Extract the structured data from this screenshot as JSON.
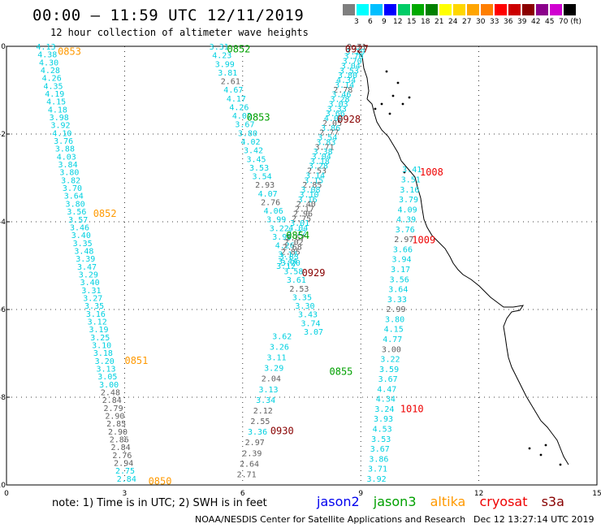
{
  "header": {
    "title": "00:00 – 11:59 UTC 12/11/2019",
    "subtitle": "12 hour collection of altimeter wave heights"
  },
  "colorbar": {
    "labels": [
      "3",
      "6",
      "9",
      "12",
      "15",
      "18",
      "21",
      "24",
      "27",
      "30",
      "33",
      "36",
      "39",
      "42",
      "45",
      "70 (ft)"
    ],
    "colors": [
      "#7f7f7f",
      "#00ffff",
      "#00bfff",
      "#0000ff",
      "#00cc66",
      "#00aa00",
      "#008000",
      "#ffff00",
      "#ffd700",
      "#ffa500",
      "#ff7f00",
      "#ff0000",
      "#cc0000",
      "#8b0000",
      "#8b008b",
      "#d000d0",
      "#000000"
    ]
  },
  "colors": {
    "jason2": "#00d0e0",
    "grey": "#606060",
    "jason3": "#00a000",
    "altika": "#ff9900",
    "cryosat": "#ee0000",
    "s3a": "#880000"
  },
  "chart_data": {
    "type": "scatter",
    "xlim": [
      0,
      15
    ],
    "ylim": [
      -10,
      0
    ],
    "x_ticks": [
      "0",
      "3",
      "6",
      "9",
      "12",
      "15"
    ],
    "y_ticks": [
      "0",
      "-2",
      "-4",
      "-6",
      "-8",
      "-10"
    ],
    "track_labels": [
      {
        "text": "0853",
        "x": 1.6,
        "y": -0.1,
        "color": "altika"
      },
      {
        "text": "0852",
        "x": 5.9,
        "y": -0.05,
        "color": "jason3"
      },
      {
        "text": "0927",
        "x": 8.9,
        "y": -0.05,
        "color": "s3a"
      },
      {
        "text": "0853",
        "x": 6.4,
        "y": -1.6,
        "color": "jason3"
      },
      {
        "text": "0928",
        "x": 8.7,
        "y": -1.65,
        "color": "s3a"
      },
      {
        "text": "1008",
        "x": 10.8,
        "y": -2.85,
        "color": "cryosat"
      },
      {
        "text": "0852",
        "x": 2.5,
        "y": -3.8,
        "color": "altika"
      },
      {
        "text": "0854",
        "x": 7.4,
        "y": -4.3,
        "color": "jason3"
      },
      {
        "text": "1009",
        "x": 10.6,
        "y": -4.4,
        "color": "cryosat"
      },
      {
        "text": "0929",
        "x": 7.8,
        "y": -5.15,
        "color": "s3a"
      },
      {
        "text": "0851",
        "x": 3.3,
        "y": -7.15,
        "color": "altika"
      },
      {
        "text": "0855",
        "x": 8.5,
        "y": -7.4,
        "color": "jason3"
      },
      {
        "text": "1010",
        "x": 10.3,
        "y": -8.25,
        "color": "cryosat"
      },
      {
        "text": "0930",
        "x": 7.0,
        "y": -8.75,
        "color": "s3a"
      },
      {
        "text": "0850",
        "x": 3.9,
        "y": -9.9,
        "color": "altika"
      }
    ],
    "tracks": [
      {
        "name": "jason2",
        "x0": 1.0,
        "y0": 0.0,
        "x1": 3.05,
        "y1": -9.85,
        "values": [
          "4.13",
          "4.38",
          "4.30",
          "4.28",
          "4.26",
          "4.35",
          "4.19",
          "4.15",
          "4.18",
          "3.98",
          "3.92",
          "4.10",
          "3.76",
          "3.88",
          "4.03",
          "3.84",
          "3.80",
          "3.82",
          "3.70",
          "3.64",
          "3.80",
          "3.56",
          "3.57",
          "3.46",
          "3.40",
          "3.35",
          "3.48",
          "3.39",
          "3.47",
          "3.29",
          "3.40",
          "3.31",
          "3.27",
          "3.35",
          "3.16",
          "3.12",
          "3.19",
          "3.25",
          "3.10",
          "3.18",
          "3.20",
          "3.13",
          "3.05",
          "3.00",
          "3.08",
          "2.98",
          "3.28",
          "3.26",
          "3.23",
          "3.18",
          "3.20",
          "3.20",
          "3.18",
          "2.67",
          "2.75",
          "2.84"
        ],
        "greys": [
          44,
          45,
          46,
          47,
          48,
          49,
          50,
          51,
          52,
          53
        ],
        "grey_values": [
          "2.48",
          "2.84",
          "2.79",
          "2.90",
          "2.85",
          "2.90",
          "2.86",
          "2.84",
          "2.76",
          "2.94"
        ]
      },
      {
        "name": "track2",
        "x0": 5.4,
        "y0": 0.0,
        "x1": 7.8,
        "y1": -6.5,
        "values": [
          "3.31",
          "4.23",
          "3.99",
          "3.81",
          "2.61",
          "4.67",
          "4.17",
          "4.26",
          "4.02",
          "3.67",
          "3.80",
          "4.02",
          "3.42",
          "3.45",
          "3.53",
          "3.54",
          "2.93",
          "4.07",
          "2.76",
          "4.06",
          "3.99",
          "3.22",
          "3.99",
          "4.26",
          "3.17",
          "3.20",
          "3.58",
          "3.61",
          "2.53",
          "3.35",
          "3.30",
          "3.43",
          "3.74",
          "3.07"
        ],
        "greys": [
          4,
          16,
          18,
          28
        ]
      },
      {
        "name": "track3",
        "x0": 8.9,
        "y0": 0.0,
        "x1": 7.1,
        "y1": -5.0,
        "values": [
          "2.71",
          "3.29",
          "3.70",
          "3.70",
          "3.04",
          "3.53",
          "3.80",
          "4.34",
          "3.14",
          "2.78",
          "3.46",
          "3.28",
          "3.03",
          "3.33",
          "3.66",
          "4.04",
          "2.05",
          "3.86",
          "2.77",
          "3.54",
          "3.83",
          "3.71",
          "3.38",
          "3.04",
          "3.18",
          "3.28",
          "2.53",
          "3.14",
          "3.15",
          "2.85",
          "3.08",
          "3.10",
          "3.16",
          "2.40",
          "2.17",
          "2.96",
          "2.75",
          "3.01",
          "4.04",
          "3.22",
          "2.67",
          "2.02",
          "2.68",
          "2.85",
          "3.83",
          "3.44",
          "3.12"
        ],
        "greys": [
          0,
          9,
          16,
          18,
          21,
          26,
          29,
          33,
          34,
          35,
          36,
          40,
          41,
          42,
          43
        ]
      },
      {
        "name": "track4",
        "x0": 10.3,
        "y0": -2.8,
        "x1": 9.4,
        "y1": -9.85,
        "values": [
          "3.41",
          "3.51",
          "3.16",
          "3.79",
          "4.09",
          "4.39",
          "3.76",
          "2.97",
          "3.66",
          "3.94",
          "3.17",
          "3.56",
          "3.64",
          "3.33",
          "2.99",
          "3.80",
          "4.15",
          "4.77",
          "3.00",
          "3.22",
          "3.59",
          "3.67",
          "4.47",
          "4.34",
          "3.24",
          "3.93",
          "4.53",
          "3.53",
          "3.67",
          "3.86",
          "3.71",
          "3.92"
        ],
        "greys": [
          7,
          14,
          18
        ]
      },
      {
        "name": "track2b",
        "x0": 7.0,
        "y0": -6.6,
        "x1": 6.1,
        "y1": -9.75,
        "values": [
          "3.62",
          "3.26",
          "3.11",
          "3.29",
          "2.04",
          "3.13",
          "3.34",
          "2.12",
          "2.55",
          "3.36",
          "2.97",
          "2.39",
          "2.64",
          "2.71"
        ],
        "greys": [
          4,
          7,
          8,
          10,
          11,
          12,
          13
        ]
      }
    ]
  },
  "footer": {
    "note": "note: 1) Time is in UTC; 2) SWH is in feet",
    "legend": [
      "jason2",
      "jason3",
      "altika",
      "cryosat",
      "s3a"
    ],
    "credit": "NOAA/NESDIS Center for Satellite Applications and Research",
    "timestamp": "Dec 12 13:27:14 UTC 2019"
  }
}
